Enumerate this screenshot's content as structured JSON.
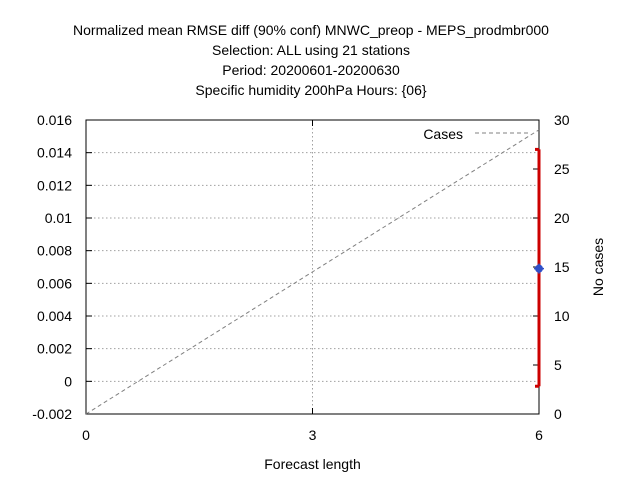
{
  "chart_data": {
    "type": "line",
    "title_lines": [
      "Normalized mean RMSE diff (90% conf) MNWC_preop - MEPS_prodmbr000",
      "Selection: ALL using    21 stations",
      "Period: 20200601-20200630",
      "Specific humidity 200hPa   Hours: {06}"
    ],
    "xlabel": "Forecast length",
    "y2label": "No cases",
    "xlim": [
      0,
      6
    ],
    "ylim": [
      -0.002,
      0.016
    ],
    "y2lim": [
      0,
      30
    ],
    "xticks": [
      "0",
      "3",
      "6"
    ],
    "yticks": [
      "-0.002",
      "0",
      "0.002",
      "0.004",
      "0.006",
      "0.008",
      "0.01",
      "0.012",
      "0.014",
      "0.016"
    ],
    "y2ticks": [
      "0",
      "5",
      "10",
      "15",
      "20",
      "25",
      "30"
    ],
    "grid": true,
    "legend_position": "top-right",
    "legend_label": "Cases",
    "cases_series": {
      "x": [
        0,
        6
      ],
      "y": [
        0,
        29
      ]
    },
    "diff_point": {
      "x": 6,
      "y": 0.0069,
      "ci_low": -0.0003,
      "ci_high": 0.0142
    },
    "colors": {
      "cases": "#808080",
      "point": "#3050c8",
      "errorbar": "#cc0000"
    }
  }
}
